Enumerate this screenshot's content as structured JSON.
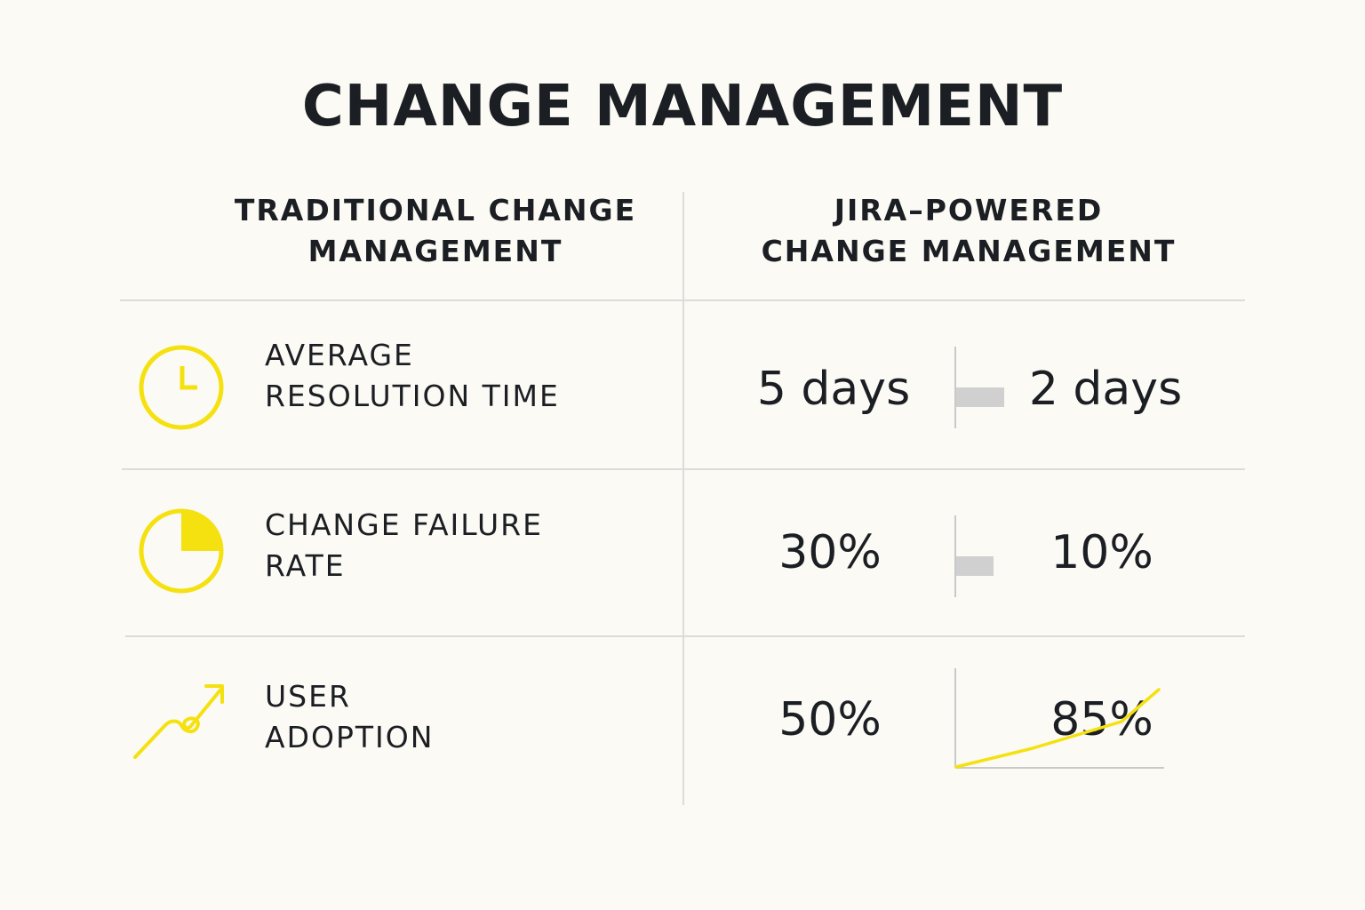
{
  "title": "CHANGE MANAGEMENT",
  "columns": {
    "traditional": [
      "TRADITIONAL CHANGE",
      "MANAGEMENT"
    ],
    "jira": [
      "JIRA–POWERED",
      "CHANGE MANAGEMENT"
    ]
  },
  "metrics": [
    {
      "icon": "clock-icon",
      "label": [
        "AVERAGE",
        "RESOLUTION TIME"
      ],
      "traditional": "5 days",
      "jira": "2 days"
    },
    {
      "icon": "pie-chart-icon",
      "label": [
        "CHANGE FAILURE",
        "RATE"
      ],
      "traditional": "30%",
      "jira": "10%"
    },
    {
      "icon": "trending-up-icon",
      "label": [
        "USER",
        "ADOPTION"
      ],
      "traditional": "50%",
      "jira": "85%"
    }
  ],
  "colors": {
    "accent": "#f5e10f",
    "bar": "#d0d0d0",
    "rule": "#dcdcd8",
    "text": "#1b1e22",
    "background": "#fbfaf5"
  }
}
